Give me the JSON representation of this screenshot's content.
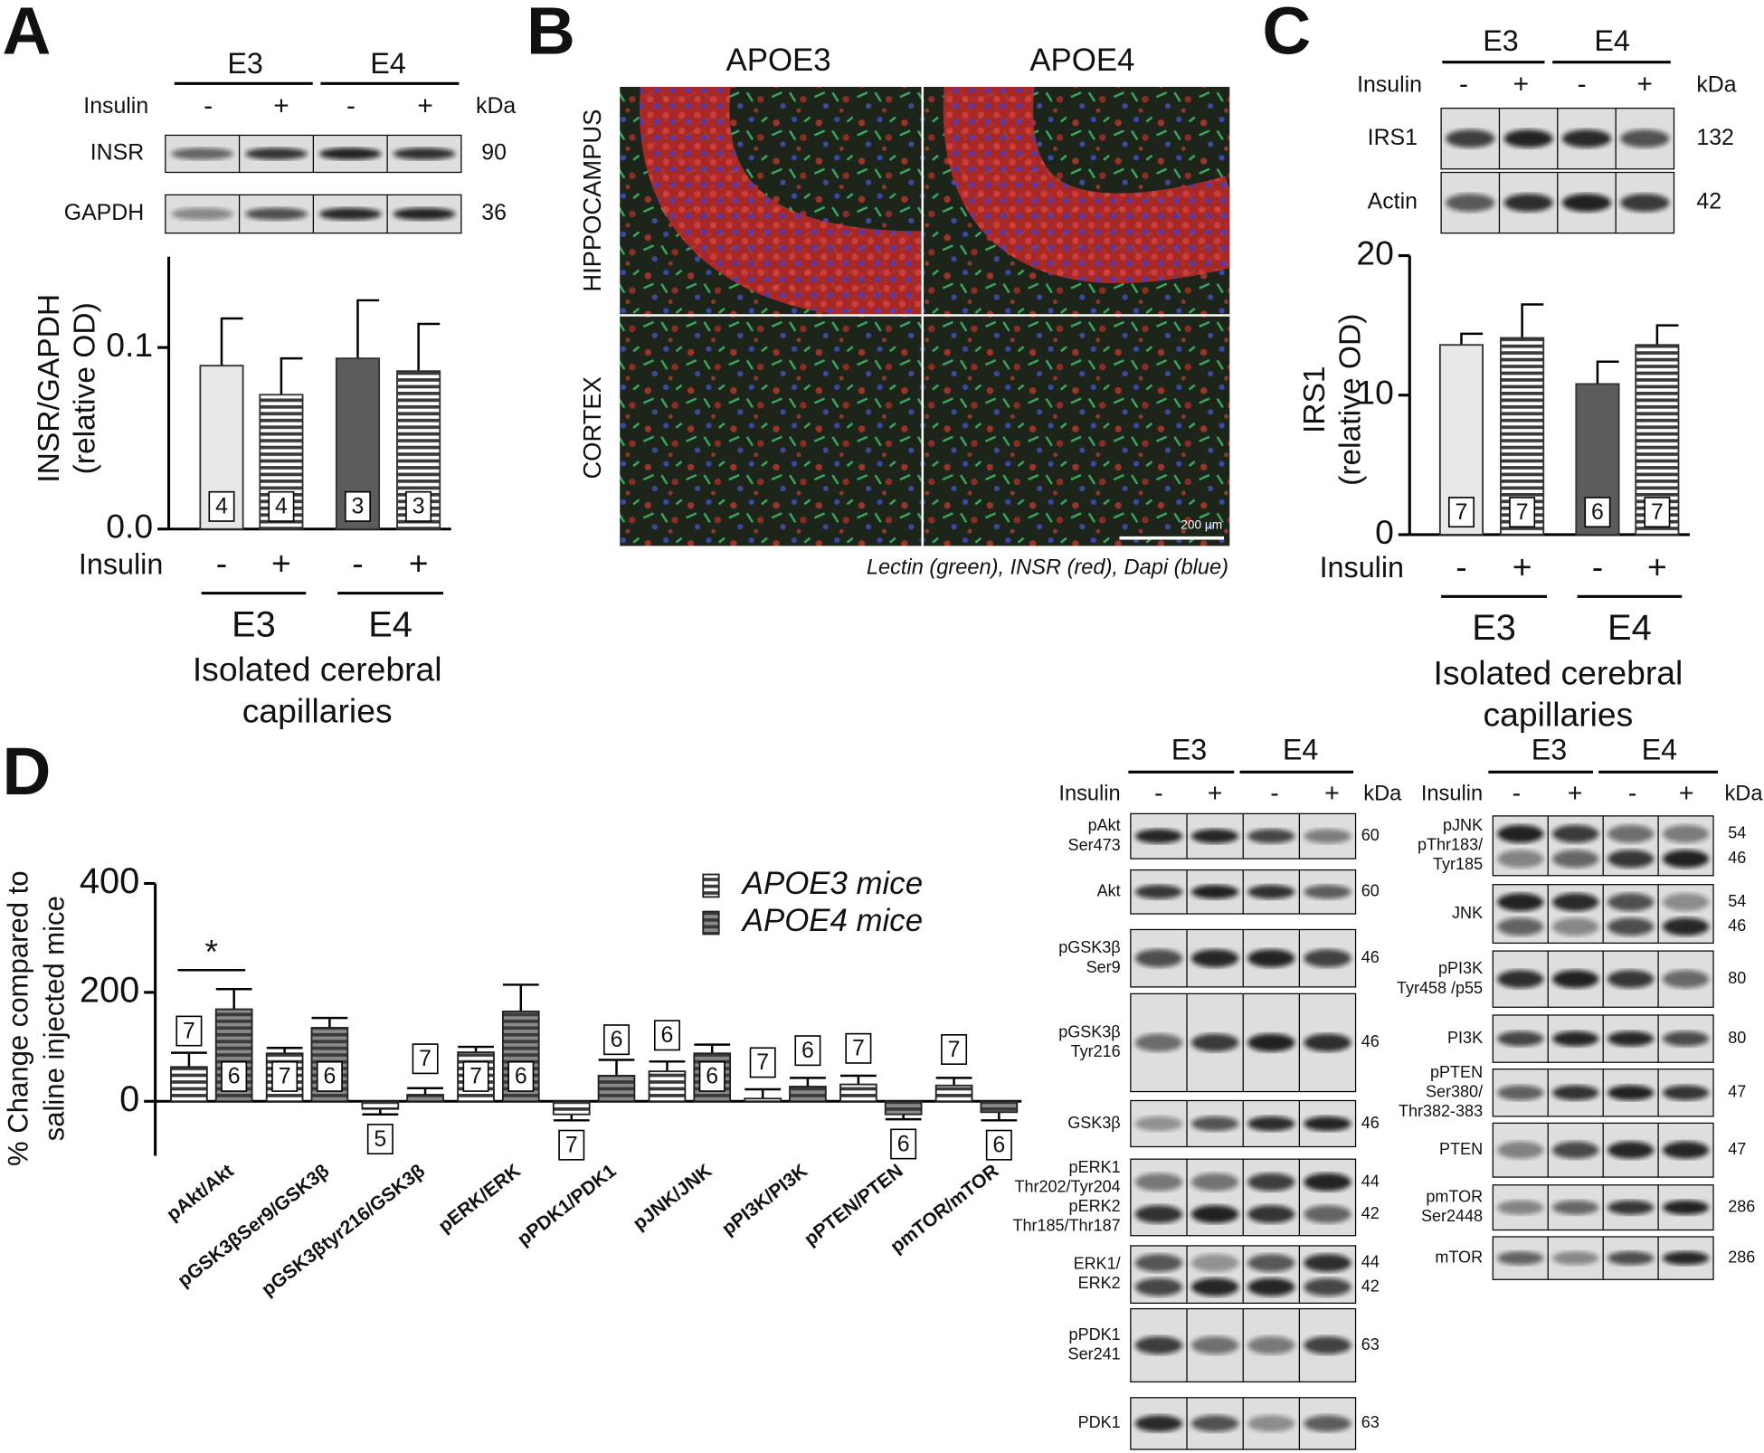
{
  "panel_labels": [
    "A",
    "B",
    "C",
    "D"
  ],
  "chart_data": [
    {
      "type": "bar",
      "ylabel": [
        "INSR/GAPDH",
        "(relative OD)"
      ],
      "x_row_label": "Insulin",
      "categories": [
        "-",
        "+",
        "-",
        "+"
      ],
      "groups": [
        "E3",
        "E4"
      ],
      "xlabel": [
        "Isolated cerebral",
        "capillaries"
      ],
      "values": [
        0.09,
        0.074,
        0.094,
        0.087
      ],
      "errors": [
        0.026,
        0.02,
        0.032,
        0.026
      ],
      "n_labels": [
        4,
        4,
        3,
        3
      ],
      "colors": [
        "#e8e8e8",
        "#ffffff",
        "#5c5c5c",
        "#ffffff"
      ],
      "striped": [
        false,
        true,
        false,
        true
      ],
      "ylim": [
        0,
        0.15
      ],
      "yticks": [
        {
          "value": 0,
          "label": "0.0"
        },
        0.1
      ]
    },
    {
      "type": "bar",
      "ylabel": [
        "IRS1",
        "(relative OD)"
      ],
      "x_row_label": "Insulin",
      "categories": [
        "-",
        "+",
        "-",
        "+"
      ],
      "groups": [
        "E3",
        "E4"
      ],
      "xlabel": [
        "Isolated cerebral",
        "capillaries"
      ],
      "values": [
        13.6,
        14.1,
        10.8,
        13.6
      ],
      "errors": [
        0.8,
        2.4,
        1.6,
        1.4
      ],
      "n_labels": [
        7,
        7,
        6,
        7
      ],
      "colors": [
        "#e8e8e8",
        "#ffffff",
        "#5c5c5c",
        "#ffffff"
      ],
      "striped": [
        false,
        true,
        false,
        true
      ],
      "ylim": [
        0,
        20
      ],
      "yticks": [
        0,
        10,
        20
      ]
    },
    {
      "type": "grouped_bar",
      "ylabel": [
        "% Change compared to",
        "saline injected mice"
      ],
      "categories": [
        "pAkt/Akt",
        "pGSK3βSer9/GSK3β",
        "pGSK3βtyr216/GSK3β",
        "pERK/ERK",
        "pPDK1/PDK1",
        "pJNK/JNK",
        "pPI3K/PI3K",
        "pPTEN/PTEN",
        "pmTOR/mTOR"
      ],
      "series": [
        {
          "name": "APOE3 mice",
          "color": "#ffffff",
          "values": [
            63,
            88,
            -14,
            90,
            -24,
            55,
            5,
            31,
            29
          ],
          "errors": [
            26,
            10,
            10,
            10,
            11,
            18,
            17,
            16,
            14
          ],
          "n_labels": [
            7,
            7,
            5,
            7,
            7,
            6,
            7,
            7,
            7
          ]
        },
        {
          "name": "APOE4 mice",
          "color": "#8a8a8a",
          "values": [
            169,
            135,
            12,
            165,
            47,
            88,
            27,
            -24,
            -20
          ],
          "errors": [
            37,
            18,
            12,
            49,
            29,
            16,
            16,
            9,
            15
          ],
          "n_labels": [
            6,
            6,
            7,
            6,
            6,
            6,
            6,
            6,
            6
          ]
        }
      ],
      "striped": true,
      "ylim": [
        -100,
        400
      ],
      "yticks": [
        0,
        200,
        400
      ],
      "annotations": [
        {
          "text": "*",
          "category": "pAkt/Akt"
        }
      ]
    }
  ],
  "images": {
    "columns": [
      "APOE3",
      "APOE4"
    ],
    "rows": [
      "HIPPOCAMPUS",
      "CORTEX"
    ],
    "scale_bar": "200 µm",
    "caption": "Lectin (green), INSR (red), Dapi (blue)"
  },
  "blots": [
    {
      "groups": [
        "E3",
        "E4"
      ],
      "row_label": "Insulin",
      "lanes": [
        "-",
        "+",
        "-",
        "+"
      ],
      "unit": "kDa",
      "rows": [
        {
          "label": [
            "INSR"
          ],
          "kda": [
            "90"
          ]
        },
        {
          "label": [
            "GAPDH"
          ],
          "kda": [
            "36"
          ]
        }
      ]
    },
    {
      "groups": [
        "E3",
        "E4"
      ],
      "row_label": "Insulin",
      "lanes": [
        "-",
        "+",
        "-",
        "+"
      ],
      "unit": "kDa",
      "rows": [
        {
          "label": [
            "IRS1"
          ],
          "kda": [
            "132"
          ]
        },
        {
          "label": [
            "Actin"
          ],
          "kda": [
            "42"
          ]
        }
      ]
    },
    {
      "groups": [
        "E3",
        "E4"
      ],
      "row_label": "Insulin",
      "lanes": [
        "-",
        "+",
        "-",
        "+"
      ],
      "unit": "kDa",
      "rows": [
        {
          "label": [
            "pAkt",
            "Ser473"
          ],
          "kda": [
            "60"
          ]
        },
        {
          "label": [
            "Akt"
          ],
          "kda": [
            "60"
          ]
        },
        {
          "label": [
            "pGSK3β",
            "Ser9"
          ],
          "kda": [
            "46"
          ]
        },
        {
          "label": [
            "pGSK3β",
            "Tyr216"
          ],
          "kda": [
            "46"
          ]
        },
        {
          "label": [
            "GSK3β"
          ],
          "kda": [
            "46"
          ]
        },
        {
          "label": [
            "pERK1",
            "Thr202/Tyr204",
            "pERK2",
            "Thr185/Thr187"
          ],
          "kda": [
            "44",
            "42"
          ]
        },
        {
          "label": [
            "ERK1/",
            "ERK2"
          ],
          "kda": [
            "44",
            "42"
          ]
        },
        {
          "label": [
            "pPDK1",
            "Ser241"
          ],
          "kda": [
            "63"
          ]
        },
        {
          "label": [
            "PDK1"
          ],
          "kda": [
            "63"
          ]
        }
      ]
    },
    {
      "groups": [
        "E3",
        "E4"
      ],
      "row_label": "Insulin",
      "lanes": [
        "-",
        "+",
        "-",
        "+"
      ],
      "unit": "kDa",
      "rows": [
        {
          "label": [
            "pJNK",
            "pThr183/",
            "Tyr185"
          ],
          "kda": [
            "54",
            "46"
          ]
        },
        {
          "label": [
            "JNK"
          ],
          "kda": [
            "54",
            "46"
          ]
        },
        {
          "label": [
            "pPI3K",
            "Tyr458 /p55"
          ],
          "kda": [
            "80"
          ]
        },
        {
          "label": [
            "PI3K"
          ],
          "kda": [
            "80"
          ]
        },
        {
          "label": [
            "pPTEN",
            "Ser380/",
            "Thr382-383"
          ],
          "kda": [
            "47"
          ]
        },
        {
          "label": [
            "PTEN"
          ],
          "kda": [
            "47"
          ]
        },
        {
          "label": [
            "pmTOR",
            "Ser2448"
          ],
          "kda": [
            "286"
          ]
        },
        {
          "label": [
            "mTOR"
          ],
          "kda": [
            "286"
          ]
        }
      ]
    }
  ]
}
